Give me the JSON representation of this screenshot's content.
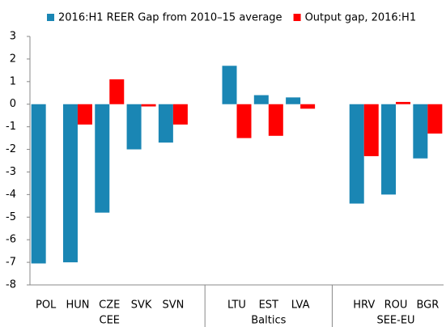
{
  "chart_data": {
    "type": "bar",
    "categories": [
      "POL",
      "HUN",
      "CZE",
      "SVK",
      "SVN",
      null,
      "LTU",
      "EST",
      "LVA",
      null,
      "HRV",
      "ROU",
      "BGR"
    ],
    "groups": [
      "CEE",
      "Baltics",
      "SEE-EU"
    ],
    "series": [
      {
        "name": "2016:H1 REER Gap from 2010–15 average",
        "color": "#1a86b4",
        "values": [
          -7.05,
          -7.0,
          -4.8,
          -2.0,
          -1.7,
          null,
          1.7,
          0.4,
          0.3,
          null,
          -4.4,
          -4.0,
          -2.4
        ]
      },
      {
        "name": "Output gap, 2016:H1",
        "color": "#ff0000",
        "values": [
          null,
          -0.9,
          1.1,
          -0.1,
          -0.9,
          null,
          -1.5,
          -1.4,
          -0.2,
          null,
          -2.3,
          0.1,
          -1.3
        ]
      }
    ],
    "ylim": [
      -8,
      3
    ],
    "yticks": [
      -8,
      -7,
      -6,
      -5,
      -4,
      -3,
      -2,
      -1,
      0,
      1,
      2,
      3
    ],
    "legend": "top"
  }
}
